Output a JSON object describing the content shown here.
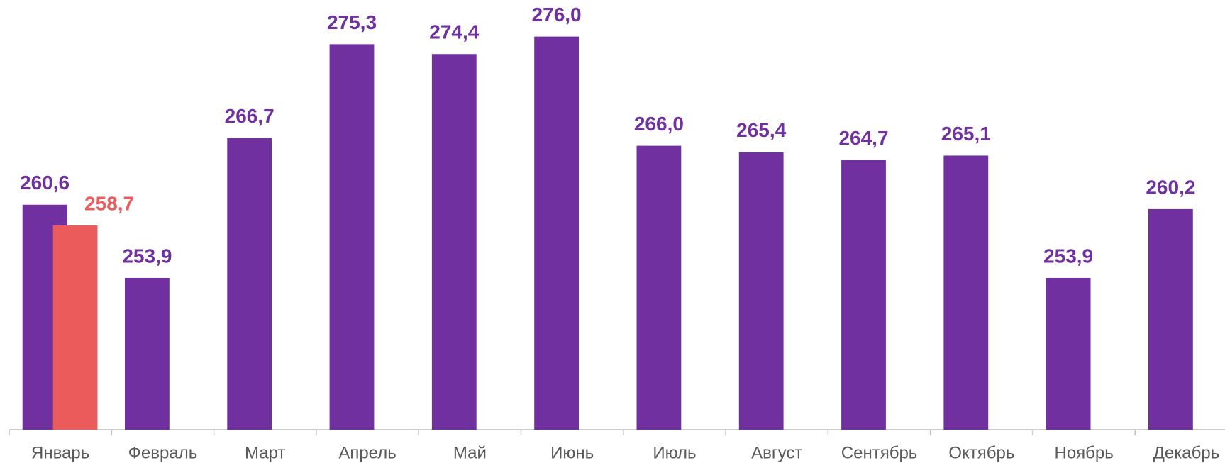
{
  "chart_data": {
    "type": "bar",
    "categories": [
      "Январь",
      "Февраль",
      "Март",
      "Апрель",
      "Май",
      "Июнь",
      "Июль",
      "Август",
      "Сентябрь",
      "Октябрь",
      "Ноябрь",
      "Декабрь"
    ],
    "series": [
      {
        "color": "#7030a0",
        "values": [
          260.6,
          253.9,
          266.7,
          275.3,
          274.4,
          276.0,
          266.0,
          265.4,
          264.7,
          265.1,
          253.9,
          260.2
        ],
        "value_labels": [
          "260,6",
          "253,9",
          "266,7",
          "275,3",
          "274,4",
          "276,0",
          "266,0",
          "265,4",
          "264,7",
          "265,1",
          "253,9",
          "260,2"
        ]
      },
      {
        "color": "#eb5b5b",
        "values": [
          258.7,
          null,
          null,
          null,
          null,
          null,
          null,
          null,
          null,
          null,
          null,
          null
        ],
        "value_labels": [
          "258,7",
          null,
          null,
          null,
          null,
          null,
          null,
          null,
          null,
          null,
          null,
          null
        ]
      }
    ],
    "ylim": [
      240,
      280
    ]
  }
}
